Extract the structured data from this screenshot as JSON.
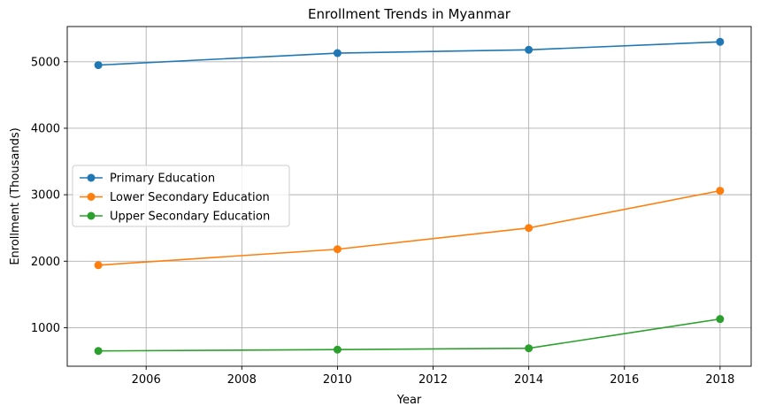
{
  "chart_data": {
    "type": "line",
    "title": "Enrollment Trends in Myanmar",
    "xlabel": "Year",
    "ylabel": "Enrollment (Thousands)",
    "xlim": [
      2004.35,
      2018.65
    ],
    "ylim": [
      420,
      5530
    ],
    "xticks": [
      2006,
      2008,
      2010,
      2012,
      2014,
      2016,
      2018
    ],
    "yticks": [
      1000,
      2000,
      3000,
      4000,
      5000
    ],
    "grid": true,
    "legend_position": "center-left",
    "series": [
      {
        "name": "Primary Education",
        "color": "#1f77b4",
        "marker": "circle",
        "x": [
          2005,
          2010,
          2014,
          2018
        ],
        "y": [
          4950,
          5130,
          5180,
          5300
        ]
      },
      {
        "name": "Lower Secondary Education",
        "color": "#ff7f0e",
        "marker": "circle",
        "x": [
          2005,
          2010,
          2014,
          2018
        ],
        "y": [
          1940,
          2180,
          2500,
          3060
        ]
      },
      {
        "name": "Upper Secondary Education",
        "color": "#2ca02c",
        "marker": "circle",
        "x": [
          2005,
          2010,
          2014,
          2018
        ],
        "y": [
          650,
          670,
          690,
          1130
        ]
      }
    ]
  }
}
